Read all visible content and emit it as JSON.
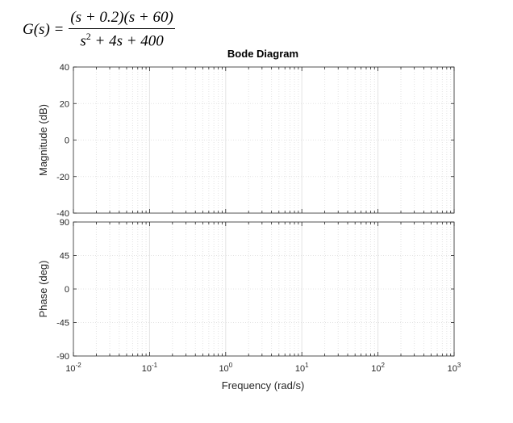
{
  "equation": {
    "lhs": "G(s) =",
    "numerator": "(s + 0.2)(s + 60)",
    "denominator_base": "s",
    "denominator_exp": "2",
    "denominator_rest": " + 4s + 400"
  },
  "chart_data": {
    "type": "line",
    "title": "Bode Diagram",
    "xlabel": "Frequency  (rad/s)",
    "x_scale": "log",
    "xlim": [
      0.01,
      1000
    ],
    "x_tick_base": "10",
    "x_tick_exponents": [
      "-2",
      "-1",
      "0",
      "1",
      "2",
      "3"
    ],
    "grid": true,
    "colors": {
      "grid": "#e3e3e3",
      "axis": "#262626",
      "background": "#ffffff"
    },
    "panels": [
      {
        "name": "magnitude",
        "ylabel": "Magnitude (dB)",
        "ylim": [
          -40,
          40
        ],
        "y_ticks": [
          "40",
          "20",
          "0",
          "-20",
          "-40"
        ],
        "series": []
      },
      {
        "name": "phase",
        "ylabel": "Phase (deg)",
        "ylim": [
          -90,
          90
        ],
        "y_ticks": [
          "90",
          "45",
          "0",
          "-45",
          "-90"
        ],
        "series": []
      }
    ]
  }
}
